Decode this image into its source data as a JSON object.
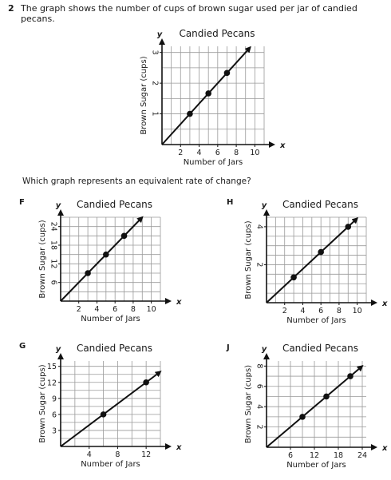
{
  "question": {
    "number": "2",
    "text": "The graph shows the number of cups of brown sugar used per jar of candied pecans.",
    "subquestion": "Which graph represents an equivalent rate of change?"
  },
  "choice_letters": {
    "F": "F",
    "G": "G",
    "H": "H",
    "J": "J"
  },
  "colors": {
    "line": "#111111",
    "grid": "#9a9a9a",
    "text": "#1a1a1a",
    "background": "#ffffff"
  },
  "chart_data": [
    {
      "id": "main",
      "type": "line",
      "title": "Candied Pecans",
      "xlabel": "Number of Jars",
      "ylabel": "Brown Sugar (cups)",
      "x_axis_letter": "x",
      "y_axis_letter": "y",
      "xlim": [
        0,
        11
      ],
      "ylim": [
        0,
        3.2
      ],
      "x_grid_step": 1,
      "y_grid_step": 0.5,
      "x_ticks": [
        2,
        4,
        6,
        8,
        10
      ],
      "y_ticks": [
        1,
        2,
        3
      ],
      "y_tick_rotated": true,
      "grid": true,
      "points": [
        [
          3,
          1
        ],
        [
          5,
          1.667
        ],
        [
          7,
          2.333
        ]
      ],
      "line_end": [
        9.5,
        3.167
      ]
    },
    {
      "id": "F",
      "type": "line",
      "title": "Candied Pecans",
      "xlabel": "Number of Jars",
      "ylabel": "Brown Sugar (cups)",
      "x_axis_letter": "x",
      "y_axis_letter": "y",
      "xlim": [
        0,
        11
      ],
      "ylim": [
        0,
        27
      ],
      "x_grid_step": 1,
      "y_grid_step": 3,
      "x_ticks": [
        2,
        4,
        6,
        8,
        10
      ],
      "y_ticks": [
        6,
        12,
        18,
        24
      ],
      "y_tick_rotated": true,
      "grid": true,
      "points": [
        [
          3,
          9
        ],
        [
          5,
          15
        ],
        [
          7,
          21
        ]
      ],
      "line_end": [
        9,
        27
      ]
    },
    {
      "id": "H",
      "type": "line",
      "title": "Candied Pecans",
      "xlabel": "Number of Jars",
      "ylabel": "Brown Sugar (cups)",
      "x_axis_letter": "x",
      "y_axis_letter": "y",
      "xlim": [
        0,
        11
      ],
      "ylim": [
        0,
        4.5
      ],
      "x_grid_step": 1,
      "y_grid_step": 0.5,
      "x_ticks": [
        2,
        4,
        6,
        8,
        10
      ],
      "y_ticks": [
        2,
        4
      ],
      "y_tick_rotated": true,
      "grid": true,
      "points": [
        [
          3,
          1.333
        ],
        [
          6,
          2.667
        ],
        [
          9,
          4
        ]
      ],
      "line_end": [
        10,
        4.444
      ]
    },
    {
      "id": "G",
      "type": "line",
      "title": "Candied Pecans",
      "xlabel": "Number of Jars",
      "ylabel": "Brown Sugar (cups)",
      "x_axis_letter": "x",
      "y_axis_letter": "y",
      "xlim": [
        0,
        14
      ],
      "ylim": [
        0,
        16
      ],
      "x_grid_step": 2,
      "y_grid_step": 1.5,
      "x_ticks": [
        4,
        8,
        12
      ],
      "y_ticks": [
        3,
        6,
        9,
        12,
        15
      ],
      "y_tick_rotated": false,
      "grid": true,
      "points": [
        [
          6,
          6
        ],
        [
          12,
          12
        ]
      ],
      "line_end": [
        14,
        14
      ]
    },
    {
      "id": "J",
      "type": "line",
      "title": "Candied Pecans",
      "xlabel": "Number of Jars",
      "ylabel": "Brown Sugar (cups)",
      "x_axis_letter": "x",
      "y_axis_letter": "y",
      "xlim": [
        0,
        25
      ],
      "ylim": [
        0,
        8.5
      ],
      "x_grid_step": 3,
      "y_grid_step": 1,
      "x_ticks": [
        6,
        12,
        18,
        24
      ],
      "y_ticks": [
        2,
        4,
        6,
        8
      ],
      "y_tick_rotated": true,
      "grid": true,
      "points": [
        [
          9,
          3
        ],
        [
          15,
          5
        ],
        [
          21,
          7
        ]
      ],
      "line_end": [
        24,
        8
      ]
    }
  ]
}
